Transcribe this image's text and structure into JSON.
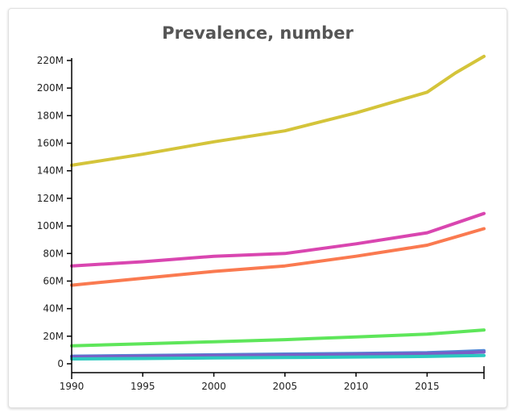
{
  "chart_data": {
    "type": "line",
    "title": "Prevalence, number",
    "xlabel": "",
    "ylabel": "",
    "xlim": [
      1990,
      2019
    ],
    "ylim": [
      0,
      222000000
    ],
    "x_ticks": [
      1990,
      1995,
      2000,
      2005,
      2010,
      2015
    ],
    "x_tick_labels": [
      "1990",
      "1995",
      "2000",
      "2005",
      "2010",
      "2015"
    ],
    "y_ticks": [
      0,
      20000000,
      40000000,
      60000000,
      80000000,
      100000000,
      120000000,
      140000000,
      160000000,
      180000000,
      200000000,
      220000000
    ],
    "y_tick_labels": [
      "0",
      "20M",
      "40M",
      "60M",
      "80M",
      "100M",
      "120M",
      "140M",
      "160M",
      "180M",
      "200M",
      "220M"
    ],
    "grid": false,
    "legend": "none",
    "x": [
      1990,
      1995,
      2000,
      2005,
      2010,
      2015,
      2017,
      2019
    ],
    "series": [
      {
        "color": "#d4c43a",
        "values": [
          144000000,
          152000000,
          161000000,
          169000000,
          182000000,
          197000000,
          211000000,
          223000000
        ]
      },
      {
        "color": "#d946b0",
        "values": [
          71000000,
          74000000,
          78000000,
          80000000,
          87000000,
          95000000,
          102000000,
          109000000
        ]
      },
      {
        "color": "#fa7a50",
        "values": [
          57000000,
          62000000,
          67000000,
          71000000,
          78000000,
          86000000,
          92000000,
          98000000
        ]
      },
      {
        "color": "#5ee65a",
        "values": [
          13000000,
          14500000,
          16000000,
          17500000,
          19500000,
          21500000,
          23000000,
          24500000
        ]
      },
      {
        "color": "#4f86d6",
        "values": [
          5500000,
          6000000,
          6500000,
          7000000,
          7500000,
          8000000,
          8700000,
          9500000
        ]
      },
      {
        "color": "#7a5fc7",
        "values": [
          5000000,
          5500000,
          6000000,
          6300000,
          6800000,
          7300000,
          7800000,
          8500000
        ]
      },
      {
        "color": "#2cc9c0",
        "values": [
          3500000,
          3800000,
          4200000,
          4500000,
          4900000,
          5300000,
          5700000,
          6000000
        ]
      }
    ]
  }
}
